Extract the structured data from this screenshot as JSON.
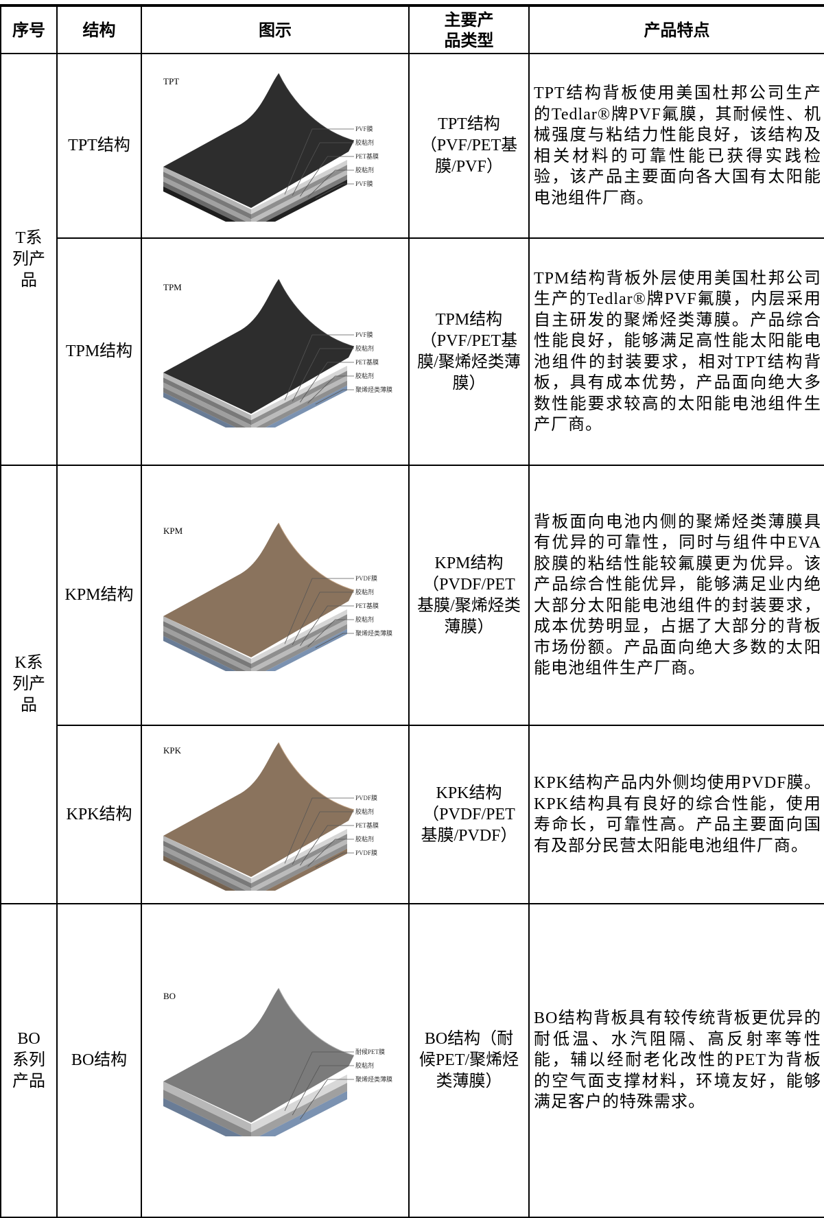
{
  "table": {
    "header": [
      "序号",
      "结构",
      "图示",
      "主要产品类型",
      "产品特点"
    ],
    "groups": [
      {
        "label": "T系列产品",
        "rows": [
          {
            "structure": "TPT结构",
            "diagram": {
              "label": "TPT",
              "layers": [
                "PVF膜",
                "胶粘剂",
                "PET基膜",
                "胶粘剂",
                "PVF膜"
              ]
            },
            "type": "TPT结构（PVF/PET基膜/PVF）",
            "features": "TPT结构背板使用美国杜邦公司生产的Tedlar®牌PVF氟膜，其耐候性、机械强度与粘结力性能良好，该结构及相关材料的可靠性能已获得实践检验，该产品主要面向各大国有太阳能电池组件厂商。"
          },
          {
            "structure": "TPM结构",
            "diagram": {
              "label": "TPM",
              "layers": [
                "PVF膜",
                "胶粘剂",
                "PET基膜",
                "胶粘剂",
                "聚烯烃类薄膜"
              ]
            },
            "type": "TPM结构（PVF/PET基膜/聚烯烃类薄膜）",
            "features": "TPM结构背板外层使用美国杜邦公司生产的Tedlar®牌PVF氟膜，内层采用自主研发的聚烯烃类薄膜。产品综合性能良好，能够满足高性能太阳能电池组件的封装要求，相对TPT结构背板，具有成本优势，产品面向绝大多数性能要求较高的太阳能电池组件生产厂商。"
          }
        ]
      },
      {
        "label": "K系列产品",
        "rows": [
          {
            "structure": "KPM结构",
            "diagram": {
              "label": "KPM",
              "layers": [
                "PVDF膜",
                "胶粘剂",
                "PET基膜",
                "胶粘剂",
                "聚烯烃类薄膜"
              ]
            },
            "type": "KPM结构（PVDF/PET基膜/聚烯烃类薄膜）",
            "features": "背板面向电池内侧的聚烯烃类薄膜具有优异的可靠性，同时与组件中EVA胶膜的粘结性能较氟膜更为优异。该产品综合性能优异，能够满足业内绝大部分太阳能电池组件的封装要求，成本优势明显，占据了大部分的背板市场份额。产品面向绝大多数的太阳能电池组件生产厂商。"
          },
          {
            "structure": "KPK结构",
            "diagram": {
              "label": "KPK",
              "layers": [
                "PVDF膜",
                "胶粘剂",
                "PET基膜",
                "胶粘剂",
                "PVDF膜"
              ]
            },
            "type": "KPK结构（PVDF/PET基膜/PVDF）",
            "features": "KPK结构产品内外侧均使用PVDF膜。KPK结构具有良好的综合性能，使用寿命长，可靠性高。产品主要面向国有及部分民营太阳能电池组件厂商。"
          }
        ]
      },
      {
        "label": "BO系列产品",
        "rows": [
          {
            "structure": "BO结构",
            "diagram": {
              "label": "BO",
              "layers": [
                "耐候PET膜",
                "胶粘剂",
                "聚烯烃类薄膜"
              ]
            },
            "type": "BO结构（耐候PET/聚烯烃类薄膜）",
            "features": "BO结构背板具有较传统背板更优异的耐低温、水汽阻隔、高反射率等性能，辅以经耐老化改性的PET为背板的空气面支撑材料，环境友好，能够满足客户的特殊需求。"
          }
        ]
      }
    ]
  }
}
